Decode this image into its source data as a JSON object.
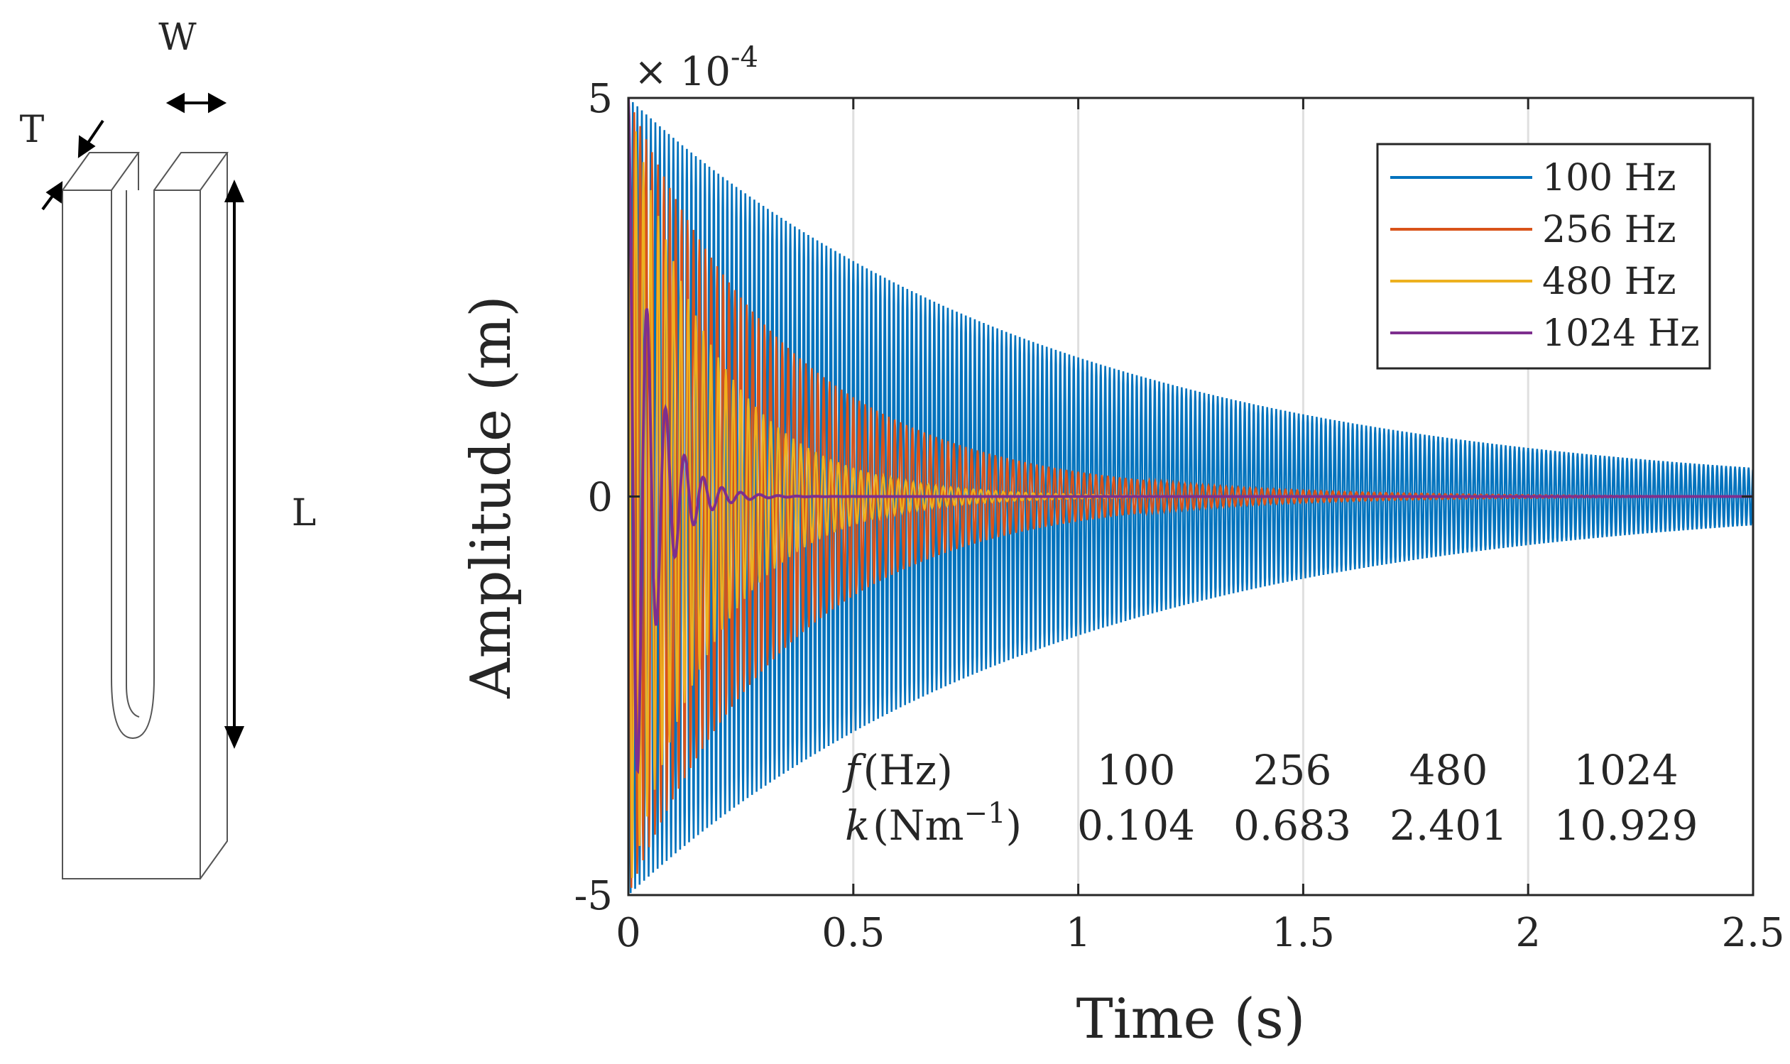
{
  "figure": {
    "labels": {
      "width": "W",
      "thickness": "T",
      "length": "L"
    }
  },
  "chart_data": {
    "type": "line",
    "title": "",
    "xlabel": "Time (s)",
    "ylabel": "Amplitude (m)",
    "xlim": [
      0,
      2.5
    ],
    "ylim": [
      -5,
      5
    ],
    "y_multiplier": "× 10",
    "y_exponent": "-4",
    "grid": "vertical",
    "x_ticks": [
      0,
      0.5,
      1,
      1.5,
      2,
      2.5
    ],
    "x_tick_labels": [
      "0",
      "0.5",
      "1",
      "1.5",
      "2",
      "2.5"
    ],
    "y_ticks": [
      -5,
      0,
      5
    ],
    "y_tick_labels": [
      "-5",
      "0",
      "5"
    ],
    "legend_position": "top-right",
    "series": [
      {
        "name": "100 Hz",
        "color": "#0072BD",
        "amplitude": 5,
        "visual_cycles_per_s": 100,
        "decay_time_s": 0.95
      },
      {
        "name": "256 Hz",
        "color": "#D95319",
        "amplitude": 5,
        "visual_cycles_per_s": 76,
        "decay_time_s": 0.36
      },
      {
        "name": "480 Hz",
        "color": "#EDB120",
        "amplitude": 5,
        "visual_cycles_per_s": 60,
        "decay_time_s": 0.19
      },
      {
        "name": "1024 Hz",
        "color": "#7E2F8E",
        "amplitude": 5,
        "visual_cycles_per_s": 24,
        "decay_time_s": 0.055
      }
    ],
    "annotation_table": {
      "row1_label": {
        "italic": "f",
        "text": "(Hz)"
      },
      "row2_label": {
        "italic": "k",
        "text": "(Nm",
        "sup": "−1",
        "close": ")"
      },
      "frequencies": [
        "100",
        "256",
        "480",
        "1024"
      ],
      "stiffness": [
        "0.104",
        "0.683",
        "2.401",
        "10.929"
      ]
    }
  }
}
